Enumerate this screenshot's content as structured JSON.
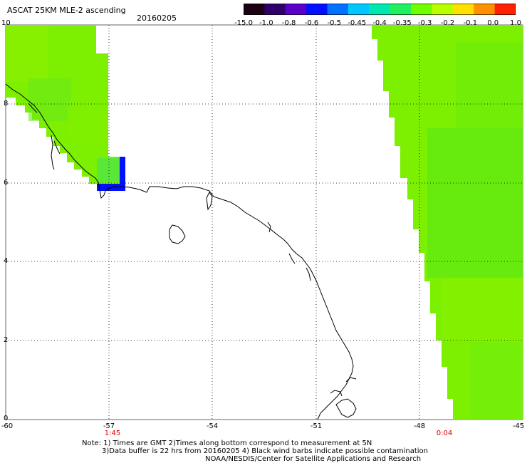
{
  "header": {
    "title": "ASCAT 25KM MLE-2 ascending",
    "date": "20160205"
  },
  "colorbar": {
    "labels": [
      "-15.0",
      "-1.0",
      "-0.8",
      "-0.6",
      "-0.5",
      "-0.45",
      "-0.4",
      "-0.35",
      "-0.3",
      "-0.2",
      "-0.1",
      "0.0",
      "1.0"
    ],
    "colors": [
      "#1a0010",
      "#30006a",
      "#5a00c8",
      "#0010ff",
      "#0070ff",
      "#00c8ff",
      "#00e8b0",
      "#20f060",
      "#70ff00",
      "#b8ff00",
      "#ffe000",
      "#ff9000",
      "#ff2000"
    ]
  },
  "axes": {
    "lat_labels": [
      "10",
      "8",
      "6",
      "4",
      "2",
      "0"
    ],
    "lon_labels": [
      "-60",
      "-57",
      "-54",
      "-51",
      "-48",
      "-45"
    ],
    "time_labels": [
      "1:45",
      "0:04"
    ]
  },
  "notes": {
    "line1": "Note: 1) Times are GMT 2)Times along bottom correspond to measurement at 5N",
    "line2": "3)Data buffer is 22 hrs from 20160205 4) Black wind barbs indicate possible contamination",
    "line3": "NOAA/NESDIS/Center for Satellite Applications and Research"
  },
  "legend_colors": {
    "swath_green": "#7cf000",
    "swath_green_dark": "#55e81a",
    "contaminated_blue": "#0010ff",
    "coast": "#000000"
  }
}
